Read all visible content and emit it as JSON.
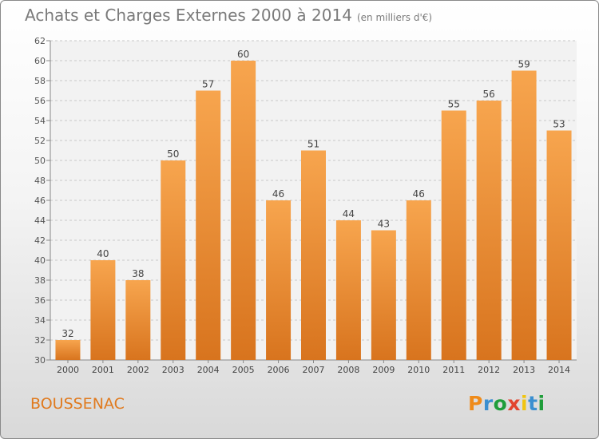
{
  "chart_data": {
    "type": "bar",
    "title": "Achats et Charges Externes 2000 à 2014",
    "subtitle": "(en milliers d'€)",
    "categories": [
      "2000",
      "2001",
      "2002",
      "2003",
      "2004",
      "2005",
      "2006",
      "2007",
      "2008",
      "2009",
      "2010",
      "2011",
      "2012",
      "2013",
      "2014"
    ],
    "values": [
      32,
      40,
      38,
      50,
      57,
      60,
      46,
      51,
      44,
      43,
      46,
      55,
      56,
      59,
      53
    ],
    "ylim": [
      30,
      62
    ],
    "yticks": [
      30,
      32,
      34,
      36,
      38,
      40,
      42,
      44,
      46,
      48,
      50,
      52,
      54,
      56,
      58,
      60,
      62
    ],
    "grid": true,
    "data_labels": true,
    "colors": {
      "bar_top": "#f7a54e",
      "bar_bottom": "#d8741e",
      "label": "#444444"
    }
  },
  "footer": {
    "place": "BOUSSENAC",
    "logo_text": "Proxiti",
    "logo_colors": [
      "#ef8b1a",
      "#3a8fd0",
      "#1f9d3a",
      "#e2452f",
      "#f1c40f",
      "#3a8fd0",
      "#1f9d3a"
    ]
  }
}
